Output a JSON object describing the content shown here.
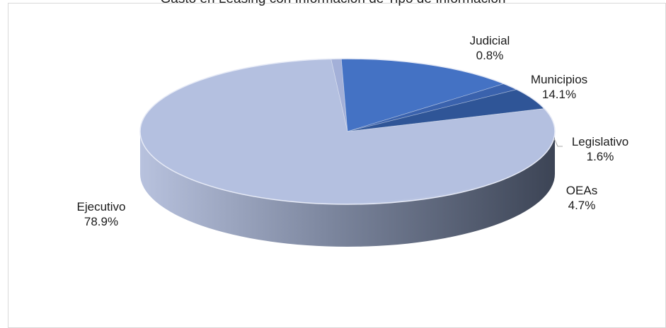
{
  "chart_data": {
    "type": "pie",
    "title": "Gasto en Leasing con Información de Tipo de Información",
    "style": "3d",
    "slices": [
      {
        "name": "Judicial",
        "label": "Judicial",
        "value": 0.8,
        "pct": "0.8%",
        "color": "#a3b0d8"
      },
      {
        "name": "Municipios",
        "label": "Municipios",
        "value": 14.1,
        "pct": "14.1%",
        "color": "#4472c4"
      },
      {
        "name": "Legislativo",
        "label": "Legislativo",
        "value": 1.6,
        "pct": "1.6%",
        "color": "#3a62ad"
      },
      {
        "name": "OEAs",
        "label": "OEAs",
        "value": 4.7,
        "pct": "4.7%",
        "color": "#2f5597"
      },
      {
        "name": "Ejecutivo",
        "label": "Ejecutivo",
        "value": 78.9,
        "pct": "78.9%",
        "color": "#b4c0e0"
      }
    ]
  }
}
